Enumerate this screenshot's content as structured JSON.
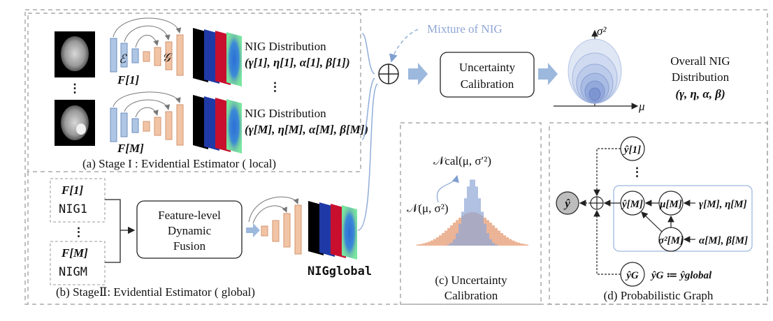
{
  "stage1": {
    "caption": "(a) Stage I : Evidential Estimator ( local)",
    "enc_symbol": "ℰ",
    "dec_symbol": "𝒢",
    "feat_1": "F[1]",
    "feat_m": "F[M]",
    "dist_1_title": "NIG Distribution",
    "dist_1_params": "(γ[1], η[1], α[1], β[1])",
    "dist_m_title": "NIG Distribution",
    "dist_m_params": "(γ[M], η[M], α[M], β[M])",
    "ellipsis": "⋮"
  },
  "stage2": {
    "caption": "(b) StageⅡ: Evidential Estimator ( global)",
    "in_1_feat": "F[1]",
    "in_1_nig": "NIG1",
    "in_m_feat": "F[M]",
    "in_m_nig": "NIGM",
    "fusion_line1": "Feature-level",
    "fusion_line2": "Dynamic",
    "fusion_line3": "Fusion",
    "output": "NIGglobal"
  },
  "top": {
    "mixture_label": "Mixture of NIG",
    "calib_line1": "Uncertainty",
    "calib_line2": "Calibration",
    "axis_y": "σ²",
    "axis_x": "μ",
    "overall_line1": "Overall NIG",
    "overall_line2": "Distribution",
    "overall_params": "(γ, η, α, β)"
  },
  "panel_c": {
    "cal_label": "𝒩cal(μ, σ′²)",
    "base_label": "𝒩(μ, σ²)",
    "caption_line1": "(c) Uncertainty",
    "caption_line2": "Calibration"
  },
  "panel_d": {
    "y_hat": "ŷ",
    "y1": "ŷ[1]",
    "ym": "ŷ[M]",
    "mu": "μ[M]",
    "sigma": "σ²[M]",
    "yg": "ŷG",
    "param_gamma_eta": "γ[M], η[M]",
    "param_alpha_beta": "α[M], β[M]",
    "definition": "ŷG ≔ ŷglobal",
    "caption": "(d) Probabilistic Graph"
  },
  "colors": {
    "encoder_blue": "#aec6e4",
    "decoder_orange": "#f2c4a6",
    "arrow_blue": "#9db8dd",
    "dashed_gray": "#aaaaaa",
    "dist_blue": "#8fa6d6",
    "dist_orange": "#e9a784"
  }
}
